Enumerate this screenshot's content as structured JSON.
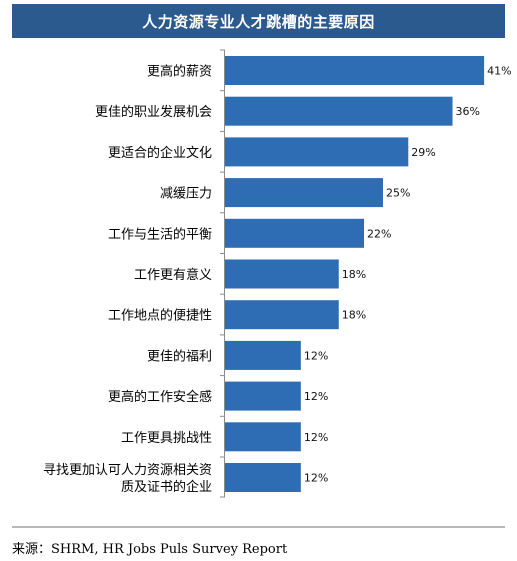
{
  "chart_data": {
    "type": "bar",
    "orientation": "horizontal",
    "title": "人力资源专业人才跳槽的主要原因",
    "categories": [
      "更高的薪资",
      "更佳的职业发展机会",
      "更适合的企业文化",
      "减缓压力",
      "工作与生活的平衡",
      "工作更有意义",
      "工作地点的便捷性",
      "更佳的福利",
      "更高的工作安全感",
      "工作更具挑战性",
      "寻找更加认可人力资源相关资质及证书的企业"
    ],
    "category_lines": [
      [
        "更高的薪资"
      ],
      [
        "更佳的职业发展机会"
      ],
      [
        "更适合的企业文化"
      ],
      [
        "减缓压力"
      ],
      [
        "工作与生活的平衡"
      ],
      [
        "工作更有意义"
      ],
      [
        "工作地点的便捷性"
      ],
      [
        "更佳的福利"
      ],
      [
        "更高的工作安全感"
      ],
      [
        "工作更具挑战性"
      ],
      [
        "寻找更加认可人力资源相关资",
        "质及证书的企业"
      ]
    ],
    "values": [
      41,
      36,
      29,
      25,
      22,
      18,
      18,
      12,
      12,
      12,
      12
    ],
    "value_labels": [
      "41%",
      "36%",
      "29%",
      "25%",
      "22%",
      "18%",
      "18%",
      "12%",
      "12%",
      "12%",
      "12%"
    ],
    "unit": "%",
    "xlim": [
      0,
      45
    ],
    "bar_color": "#2e6db4",
    "grid": false,
    "legend": "none"
  },
  "header": {
    "title": "人力资源专业人才跳槽的主要原因",
    "background": "#2b5a8e"
  },
  "footer": {
    "source": "来源：SHRM, HR Jobs Puls Survey Report"
  }
}
